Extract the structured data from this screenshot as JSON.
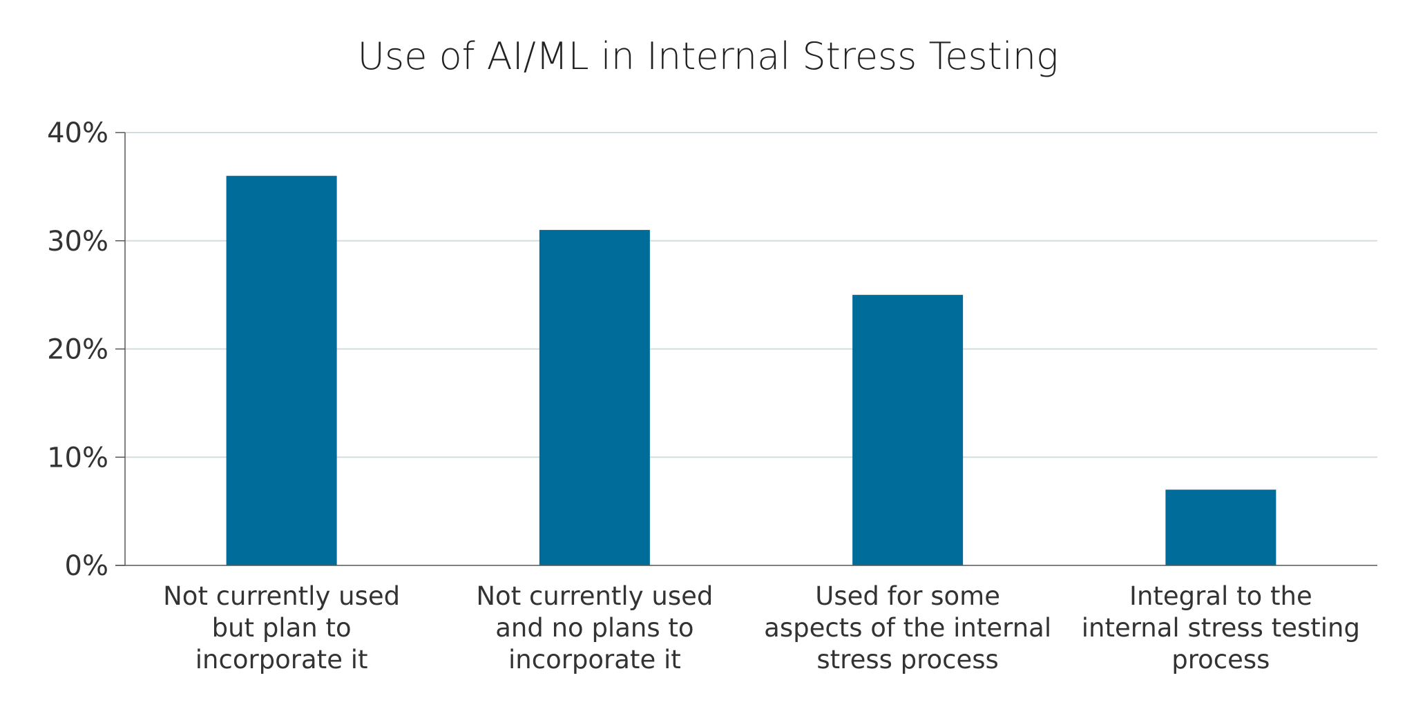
{
  "chart_data": {
    "type": "bar",
    "title": "Use of AI/ML in Internal Stress Testing",
    "categories": [
      [
        "Not currently used",
        "but plan to",
        "incorporate it"
      ],
      [
        "Not currently used",
        "and no plans to",
        "incorporate it"
      ],
      [
        "Used for some",
        "aspects of the internal",
        "stress process"
      ],
      [
        "Integral to the",
        "internal stress testing",
        "process"
      ]
    ],
    "values": [
      36,
      31,
      25,
      7
    ],
    "ylim": [
      0,
      40
    ],
    "yticks": [
      "0%",
      "10%",
      "20%",
      "30%",
      "40%"
    ],
    "grid": true,
    "bar_color": "#006c9a",
    "grid_color": "#d3dcdf",
    "xlabel": "",
    "ylabel": ""
  }
}
